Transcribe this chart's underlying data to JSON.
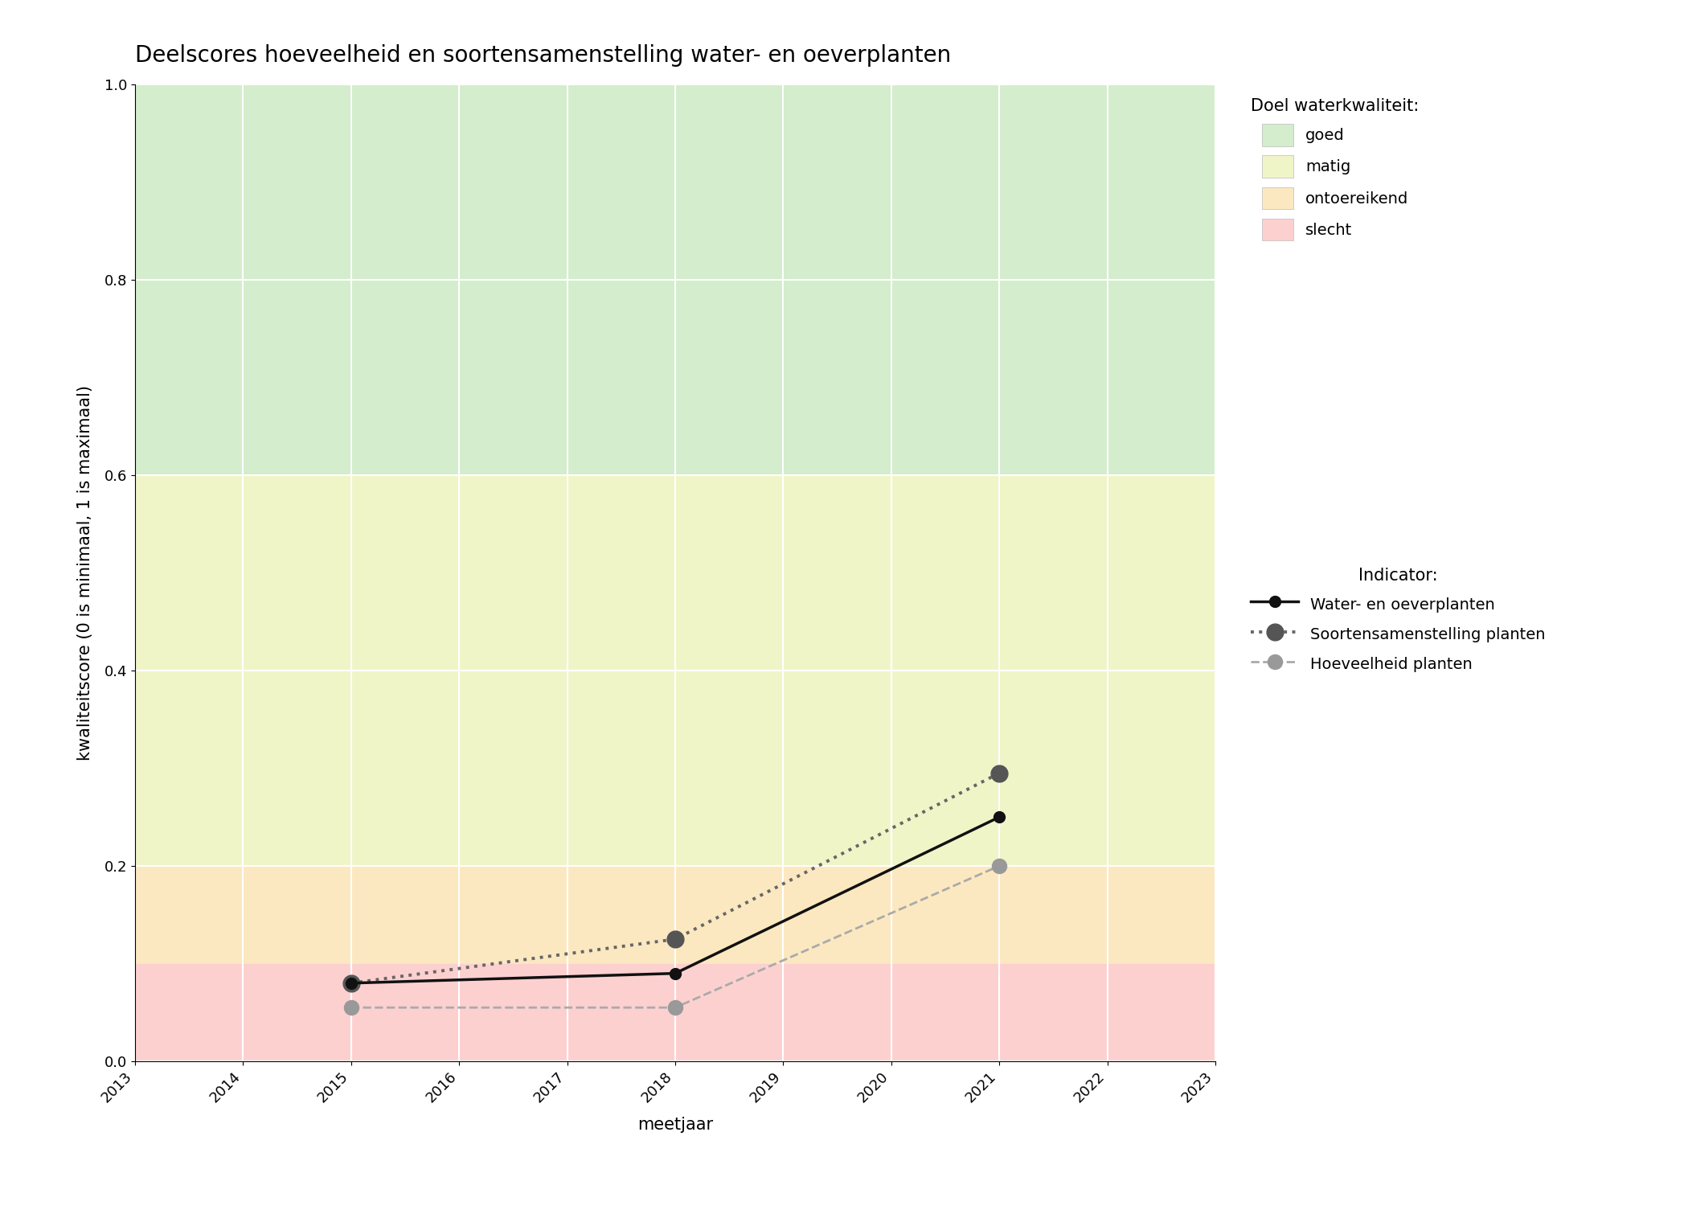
{
  "title": "Deelscores hoeveelheid en soortensamenstelling water- en oeverplanten",
  "xlabel": "meetjaar",
  "ylabel": "kwaliteitscore (0 is minimaal, 1 is maximaal)",
  "xlim": [
    2013,
    2023
  ],
  "ylim": [
    0.0,
    1.0
  ],
  "xticks": [
    2013,
    2014,
    2015,
    2016,
    2017,
    2018,
    2019,
    2020,
    2021,
    2022,
    2023
  ],
  "yticks": [
    0.0,
    0.2,
    0.4,
    0.6,
    0.8,
    1.0
  ],
  "fig_bg_color": "#ffffff",
  "plot_bg_color": "#ffffff",
  "quality_bands": [
    {
      "name": "goed",
      "ymin": 0.6,
      "ymax": 1.0,
      "color": "#d4edcc"
    },
    {
      "name": "matig",
      "ymin": 0.2,
      "ymax": 0.6,
      "color": "#f0f5c8"
    },
    {
      "name": "ontoereikend",
      "ymin": 0.1,
      "ymax": 0.2,
      "color": "#fce8c0"
    },
    {
      "name": "slecht",
      "ymin": 0.0,
      "ymax": 0.1,
      "color": "#fdd0d0"
    }
  ],
  "lines": [
    {
      "name": "Water- en oeverplanten",
      "x": [
        2015,
        2018,
        2021
      ],
      "y": [
        0.08,
        0.09,
        0.25
      ],
      "color": "#111111",
      "linestyle": "solid",
      "linewidth": 2.5,
      "marker_color": "#111111",
      "marker_size": 10,
      "marker": "o",
      "zorder": 6
    },
    {
      "name": "Soortensamenstelling planten",
      "x": [
        2015,
        2018,
        2021
      ],
      "y": [
        0.08,
        0.125,
        0.295
      ],
      "color": "#666666",
      "linestyle": "dotted",
      "linewidth": 2.8,
      "marker_color": "#555555",
      "marker_size": 15,
      "marker": "o",
      "zorder": 5
    },
    {
      "name": "Hoeveelheid planten",
      "x": [
        2015,
        2018,
        2021
      ],
      "y": [
        0.055,
        0.055,
        0.2
      ],
      "color": "#aaaaaa",
      "linestyle": "dashed",
      "linewidth": 2.0,
      "marker_color": "#999999",
      "marker_size": 13,
      "marker": "o",
      "zorder": 4
    }
  ],
  "legend_quality_title": "Doel waterkwaliteit:",
  "legend_indicator_title": "Indicator:",
  "legend_quality_colors": [
    "#d4edcc",
    "#f0f5c8",
    "#fce8c0",
    "#fdd0d0"
  ],
  "legend_quality_labels": [
    "goed",
    "matig",
    "ontoereikend",
    "slecht"
  ],
  "title_fontsize": 20,
  "axis_label_fontsize": 15,
  "tick_fontsize": 13,
  "legend_fontsize": 14,
  "legend_title_fontsize": 15
}
